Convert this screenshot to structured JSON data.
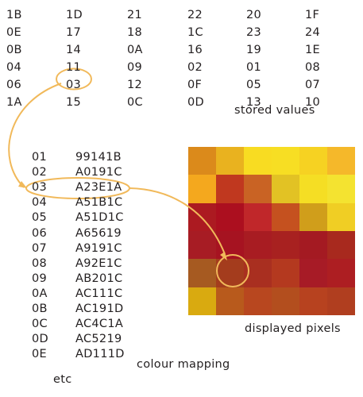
{
  "stored_values": {
    "rows": [
      [
        "1B",
        "1D",
        "21",
        "22",
        "20",
        "1F"
      ],
      [
        "0E",
        "17",
        "18",
        "1C",
        "23",
        "24"
      ],
      [
        "0B",
        "14",
        "0A",
        "16",
        "19",
        "1E"
      ],
      [
        "04",
        "11",
        "09",
        "02",
        "01",
        "08"
      ],
      [
        "06",
        "03",
        "12",
        "0F",
        "05",
        "07"
      ],
      [
        "1A",
        "15",
        "0C",
        "0D",
        "13",
        "10"
      ]
    ],
    "label": "stored values"
  },
  "colour_mapping": {
    "entries": [
      {
        "index": "01",
        "colour": "99141B"
      },
      {
        "index": "02",
        "colour": "A0191C"
      },
      {
        "index": "03",
        "colour": "A23E1A"
      },
      {
        "index": "04",
        "colour": "A51B1C"
      },
      {
        "index": "05",
        "colour": "A51D1C"
      },
      {
        "index": "06",
        "colour": "A65619"
      },
      {
        "index": "07",
        "colour": "A9191C"
      },
      {
        "index": "08",
        "colour": "A92E1C"
      },
      {
        "index": "09",
        "colour": "AB201C"
      },
      {
        "index": "0A",
        "colour": "AC111C"
      },
      {
        "index": "0B",
        "colour": "AC191D"
      },
      {
        "index": "0C",
        "colour": "AC4C1A"
      },
      {
        "index": "0D",
        "colour": "AC5219"
      },
      {
        "index": "0E",
        "colour": "AD111D"
      }
    ],
    "label": "colour mapping",
    "more_label": "etc"
  },
  "displayed_pixels": {
    "label": "displayed pixels",
    "rows": [
      [
        "#DB8A1B",
        "#E9B21F",
        "#F8DC22",
        "#F7DE23",
        "#F6D222",
        "#F5B82A"
      ],
      [
        "#F4A81E",
        "#C0381F",
        "#C96324",
        "#E2C224",
        "#F5DE24",
        "#F4E330"
      ],
      [
        "#AC1A21",
        "#AC0F1F",
        "#C0272A",
        "#C5511F",
        "#D09E1B",
        "#F0CE24"
      ],
      [
        "#A71C24",
        "#A61321",
        "#A81C22",
        "#A82120",
        "#A41A22",
        "#A8291E"
      ],
      [
        "#A65A21",
        "#A43C1D",
        "#A92F20",
        "#B4391F",
        "#A71B26",
        "#AD1E22"
      ],
      [
        "#D9AA10",
        "#B85A1C",
        "#B8471F",
        "#B34E1E",
        "#B7421F",
        "#B03E1F"
      ]
    ]
  },
  "accent_colour": "#F1B95A"
}
